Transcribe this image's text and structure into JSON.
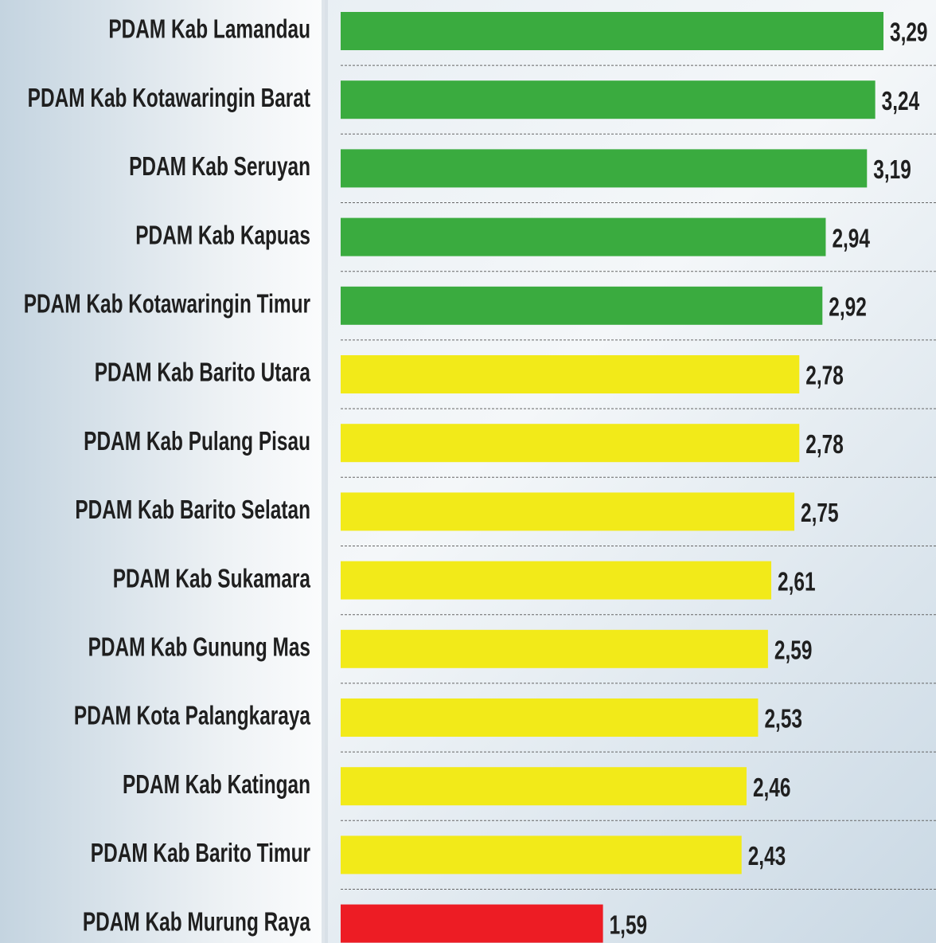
{
  "chart_data": {
    "type": "bar",
    "orientation": "horizontal",
    "categories": [
      "PDAM Kab Lamandau",
      "PDAM Kab Kotawaringin Barat",
      "PDAM Kab Seruyan",
      "PDAM Kab Kapuas",
      "PDAM Kab Kotawaringin Timur",
      "PDAM Kab Barito Utara",
      "PDAM Kab Pulang Pisau",
      "PDAM Kab Barito Selatan",
      "PDAM Kab Sukamara",
      "PDAM Kab Gunung Mas",
      "PDAM Kota Palangkaraya",
      "PDAM Kab Katingan",
      "PDAM Kab Barito Timur",
      "PDAM Kab Murung Raya"
    ],
    "values": [
      3.29,
      3.24,
      3.19,
      2.94,
      2.92,
      2.78,
      2.78,
      2.75,
      2.61,
      2.59,
      2.53,
      2.46,
      2.43,
      1.59
    ],
    "value_labels": [
      "3,29",
      "3,24",
      "3,19",
      "2,94",
      "2,92",
      "2,78",
      "2,78",
      "2,75",
      "2,61",
      "2,59",
      "2,53",
      "2,46",
      "2,43",
      "1,59"
    ],
    "colors": [
      "#3aab3f",
      "#3aab3f",
      "#3aab3f",
      "#3aab3f",
      "#3aab3f",
      "#f2ea19",
      "#f2ea19",
      "#f2ea19",
      "#f2ea19",
      "#f2ea19",
      "#f2ea19",
      "#f2ea19",
      "#f2ea19",
      "#ed1c24"
    ]
  }
}
